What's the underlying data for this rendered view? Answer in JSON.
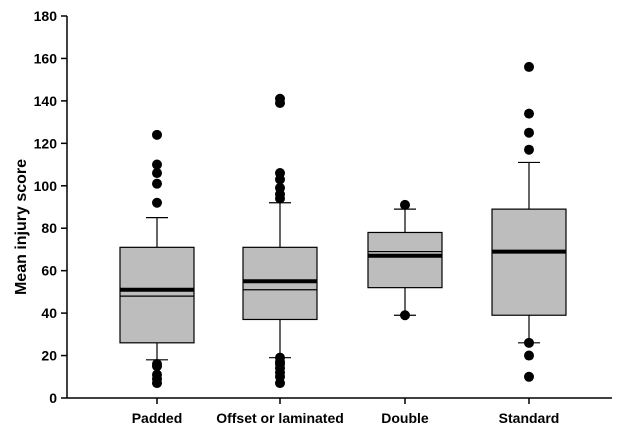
{
  "chart_data": {
    "type": "box",
    "title": "",
    "xlabel": "",
    "ylabel": "Mean injury score",
    "ylim": [
      0,
      180
    ],
    "yticks": [
      0,
      20,
      40,
      60,
      80,
      100,
      120,
      140,
      160,
      180
    ],
    "categories": [
      "Padded",
      "Offset or laminated",
      "Double",
      "Standard"
    ],
    "boxes": [
      {
        "category": "Padded",
        "whisker_low": 18,
        "q1": 26,
        "median": 48,
        "mean": 51,
        "q3": 71,
        "whisker_high": 85,
        "outliers": [
          7,
          9,
          11,
          15,
          16,
          92,
          101,
          106,
          110,
          124
        ]
      },
      {
        "category": "Offset or laminated",
        "whisker_low": 19,
        "q1": 37,
        "median": 51,
        "mean": 55,
        "q3": 71,
        "whisker_high": 92,
        "outliers": [
          7,
          10,
          12,
          14,
          16,
          17,
          19,
          94,
          96,
          99,
          103,
          106,
          139,
          141
        ]
      },
      {
        "category": "Double",
        "whisker_low": 39,
        "q1": 52,
        "median": 69,
        "mean": 67,
        "q3": 78,
        "whisker_high": 89,
        "outliers": [
          39,
          91
        ]
      },
      {
        "category": "Standard",
        "whisker_low": 26,
        "q1": 39,
        "median": 69,
        "mean": 69,
        "q3": 89,
        "whisker_high": 111,
        "outliers": [
          10,
          20,
          26,
          117,
          125,
          134,
          156
        ]
      }
    ],
    "colors": {
      "box_fill": "#bdbdbd",
      "stroke": "#000000",
      "outlier": "#000000"
    },
    "grid": false,
    "legend": "none"
  }
}
